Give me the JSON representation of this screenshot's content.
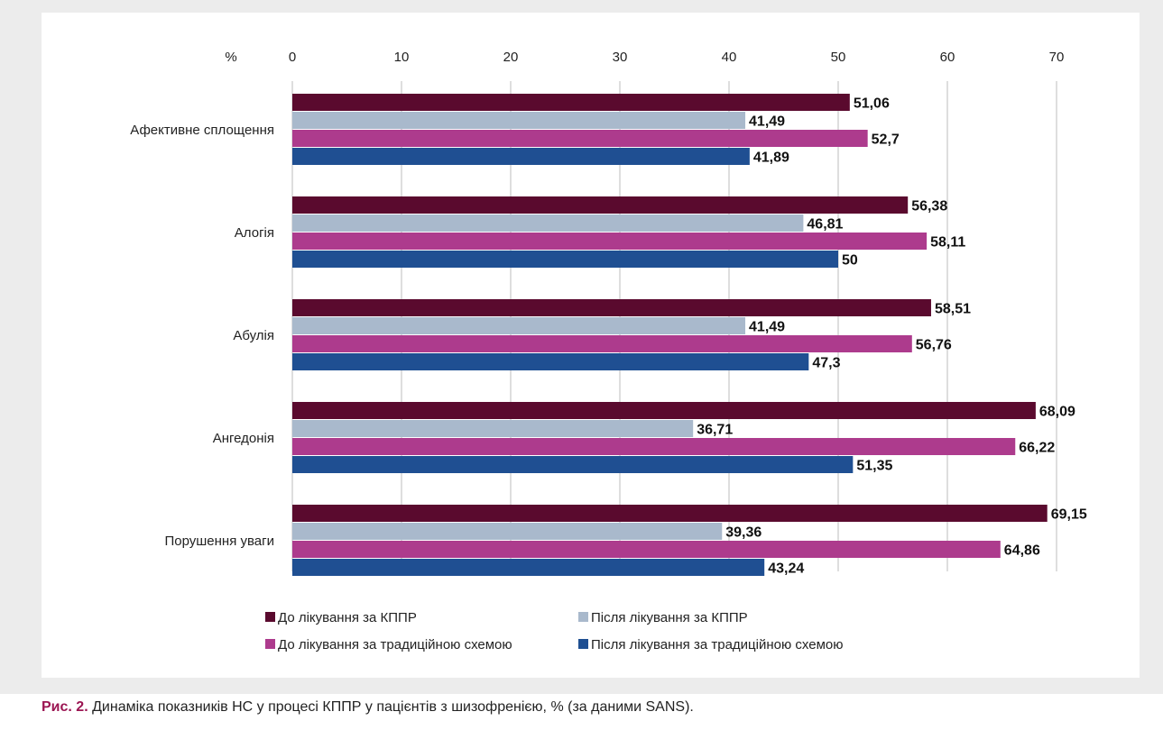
{
  "chart_data": {
    "type": "bar",
    "orientation": "horizontal",
    "axis_unit_label": "%",
    "xlim": [
      0,
      70
    ],
    "xticks": [
      0,
      10,
      20,
      30,
      40,
      50,
      60,
      70
    ],
    "grid": true,
    "legend_position": "bottom",
    "categories": [
      "Афективне сплощення",
      "Алогія",
      "Абулія",
      "Ангедонія",
      "Порушення уваги"
    ],
    "series": [
      {
        "name": "До лікування за КППР",
        "color": "#5a0a2e",
        "values": [
          51.06,
          56.38,
          58.51,
          68.09,
          69.15
        ],
        "labels": [
          "51,06",
          "56,38",
          "58,51",
          "68,09",
          "69,15"
        ]
      },
      {
        "name": "Після лікування за КППР",
        "color": "#a9b9cc",
        "values": [
          41.49,
          46.81,
          41.49,
          36.71,
          39.36
        ],
        "labels": [
          "41,49",
          "46,81",
          "41,49",
          "36,71",
          "39,36"
        ]
      },
      {
        "name": "До лікування за традиційною схемою",
        "color": "#ad3b8d",
        "values": [
          52.7,
          58.11,
          56.76,
          66.22,
          64.86
        ],
        "labels": [
          "52,7",
          "58,11",
          "56,76",
          "66,22",
          "64,86"
        ]
      },
      {
        "name": "Після лікування за традиційною схемою",
        "color": "#1f4f92",
        "values": [
          41.89,
          50,
          47.3,
          51.35,
          43.24
        ],
        "labels": [
          "41,89",
          "50",
          "47,3",
          "51,35",
          "43,24"
        ]
      }
    ]
  },
  "caption": {
    "figure_label": "Рис. 2.",
    "text": " Динаміка показників НС у процесі КППР у пацієнтів з шизофренією, % (за даними SANS)."
  }
}
